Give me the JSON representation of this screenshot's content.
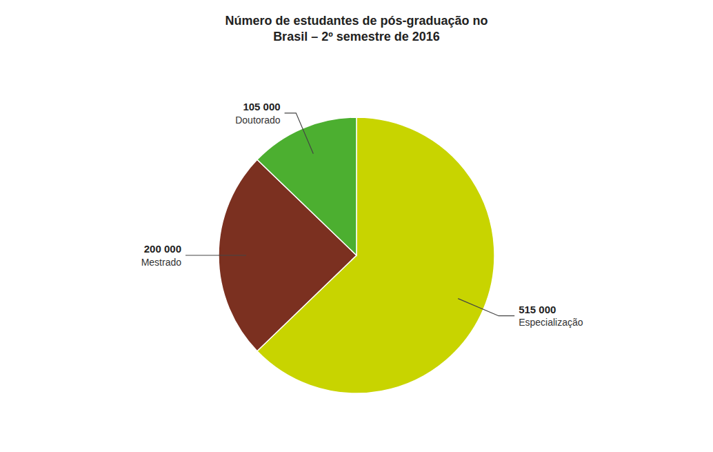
{
  "chart_data": {
    "type": "pie",
    "title": "Número de estudantes de pós-graduação no\nBrasil – 2º semestre de 2016",
    "categories": [
      "Especialização",
      "Mestrado",
      "Doutorado"
    ],
    "values": [
      515000,
      200000,
      105000
    ],
    "value_labels": [
      "515 000",
      "200 000",
      "105 000"
    ],
    "colors": [
      "#c8d400",
      "#7b3020",
      "#4caf30"
    ],
    "data_labels": true
  }
}
